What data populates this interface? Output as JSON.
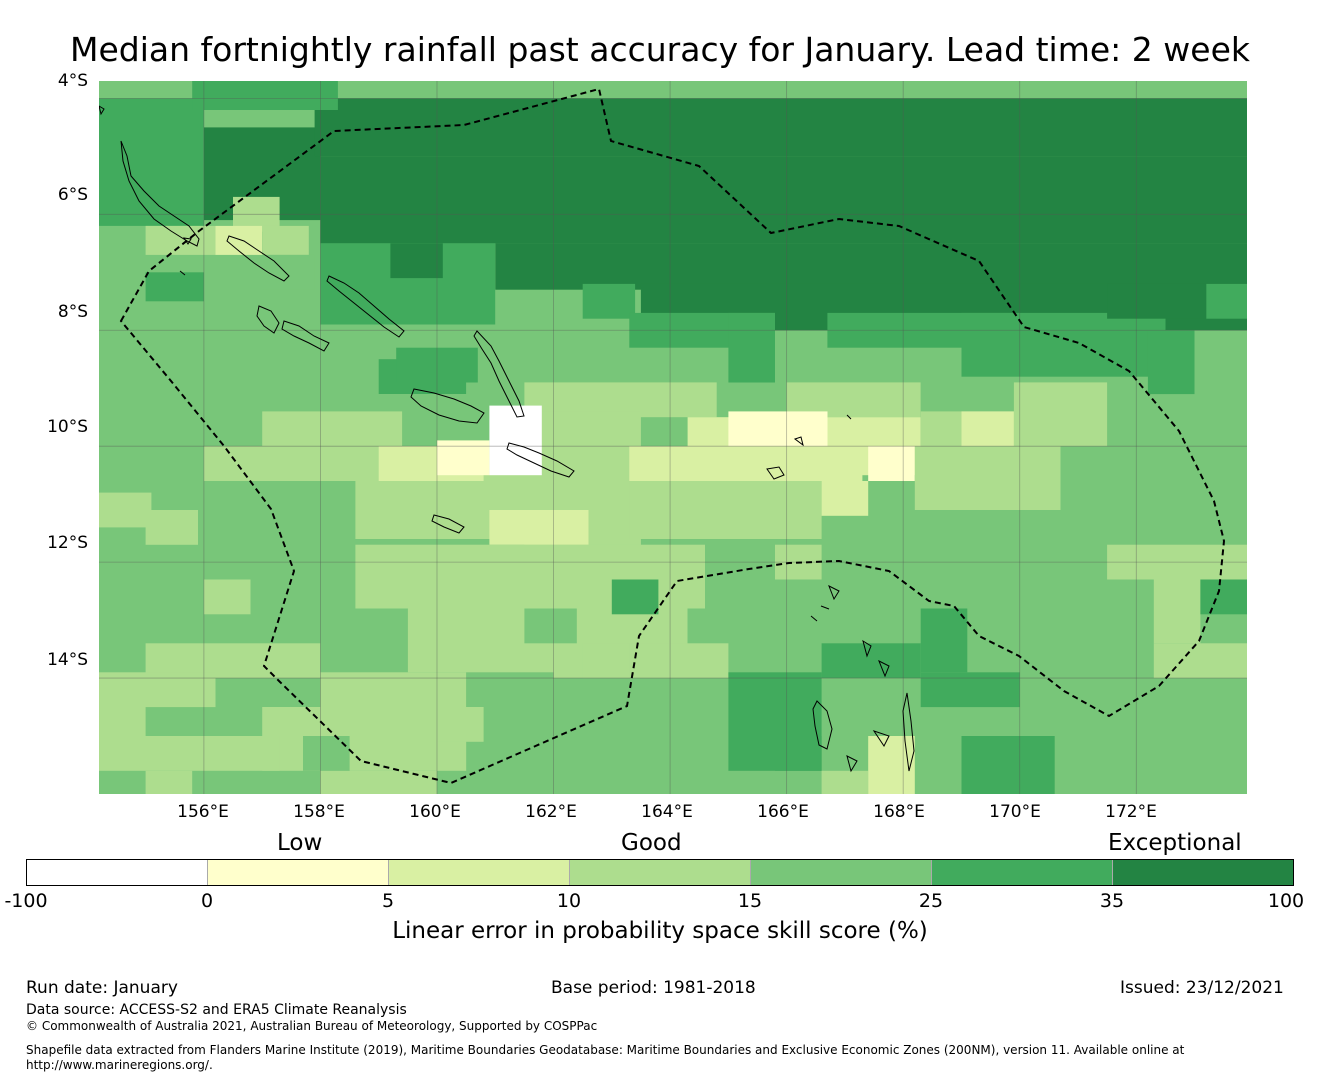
{
  "title": "Median fortnightly rainfall past accuracy for January. Lead time: 2 week",
  "map": {
    "lon_range": [
      154.2,
      173.9
    ],
    "lat_range": [
      -16.0,
      -3.7
    ],
    "y_labels": [
      "4°S",
      "6°S",
      "8°S",
      "10°S",
      "12°S",
      "14°S"
    ],
    "x_labels": [
      "156°E",
      "158°E",
      "160°E",
      "162°E",
      "164°E",
      "166°E",
      "168°E",
      "170°E",
      "172°E"
    ],
    "grid_lons": [
      156,
      158,
      160,
      162,
      164,
      166,
      168,
      170,
      172
    ],
    "grid_lats": [
      -4,
      -6,
      -8,
      -10,
      -12,
      -14
    ],
    "cell_deg": [
      0.833,
      0.555
    ],
    "level_colors": [
      "#ffffff",
      "#ffffcc",
      "#d9f0a3",
      "#addd8e",
      "#78c679",
      "#41ab5d",
      "#238443"
    ],
    "default_level": 4,
    "cells": [
      {
        "lon": 156.0,
        "lat": -4.5,
        "w": 2.0,
        "h": 1.6,
        "level": 6
      },
      {
        "lon": 157.9,
        "lat": -4.0,
        "w": 16.0,
        "h": 1.0,
        "level": 6
      },
      {
        "lon": 158.0,
        "lat": -5.0,
        "w": 16.0,
        "h": 1.5,
        "level": 6
      },
      {
        "lon": 161.0,
        "lat": -6.5,
        "w": 13.0,
        "h": 0.8,
        "level": 6
      },
      {
        "lon": 163.5,
        "lat": -7.2,
        "w": 10.5,
        "h": 0.8,
        "level": 6
      },
      {
        "lon": 154.2,
        "lat": -4.0,
        "w": 1.8,
        "h": 2.2,
        "level": 5
      },
      {
        "lon": 155.8,
        "lat": -3.7,
        "w": 2.5,
        "h": 0.5,
        "level": 5
      },
      {
        "lon": 158.0,
        "lat": -6.5,
        "w": 3.0,
        "h": 1.4,
        "level": 5
      },
      {
        "lon": 159.2,
        "lat": -6.5,
        "w": 0.9,
        "h": 0.6,
        "level": 6
      },
      {
        "lon": 162.5,
        "lat": -7.2,
        "w": 0.9,
        "h": 0.6,
        "level": 5
      },
      {
        "lon": 163.3,
        "lat": -7.7,
        "w": 2.5,
        "h": 0.6,
        "level": 5
      },
      {
        "lon": 165.0,
        "lat": -7.7,
        "w": 0.8,
        "h": 1.2,
        "level": 5
      },
      {
        "lon": 166.7,
        "lat": -7.7,
        "w": 3.3,
        "h": 0.6,
        "level": 5
      },
      {
        "lon": 169.0,
        "lat": -7.7,
        "w": 3.5,
        "h": 1.1,
        "level": 5
      },
      {
        "lon": 172.2,
        "lat": -8.0,
        "w": 0.8,
        "h": 1.1,
        "level": 5
      },
      {
        "lon": 173.2,
        "lat": -7.2,
        "w": 0.7,
        "h": 0.6,
        "level": 5
      },
      {
        "lon": 171.5,
        "lat": -7.2,
        "w": 1.7,
        "h": 0.6,
        "level": 6
      },
      {
        "lon": 155.0,
        "lat": -7.0,
        "w": 1.0,
        "h": 0.5,
        "level": 5
      },
      {
        "lon": 159.0,
        "lat": -8.5,
        "w": 1.5,
        "h": 0.6,
        "level": 5
      },
      {
        "lon": 156.5,
        "lat": -5.7,
        "w": 0.8,
        "h": 0.6,
        "level": 3
      },
      {
        "lon": 156.2,
        "lat": -6.2,
        "w": 0.8,
        "h": 0.5,
        "level": 2
      },
      {
        "lon": 157.0,
        "lat": -6.2,
        "w": 0.8,
        "h": 0.5,
        "level": 3
      },
      {
        "lon": 155.0,
        "lat": -6.2,
        "w": 1.2,
        "h": 0.5,
        "level": 3
      },
      {
        "lon": 161.5,
        "lat": -8.9,
        "w": 3.3,
        "h": 0.6,
        "level": 3
      },
      {
        "lon": 166.0,
        "lat": -8.9,
        "w": 2.3,
        "h": 0.6,
        "level": 3
      },
      {
        "lon": 161.5,
        "lat": -9.4,
        "w": 2.0,
        "h": 2.4,
        "level": 3
      },
      {
        "lon": 157.0,
        "lat": -9.4,
        "w": 2.4,
        "h": 0.6,
        "level": 3
      },
      {
        "lon": 156.0,
        "lat": -10.0,
        "w": 6.0,
        "h": 0.6,
        "level": 3
      },
      {
        "lon": 158.6,
        "lat": -10.6,
        "w": 3.4,
        "h": 1.0,
        "level": 3
      },
      {
        "lon": 164.3,
        "lat": -9.5,
        "w": 4.0,
        "h": 1.0,
        "level": 2
      },
      {
        "lon": 163.3,
        "lat": -10.0,
        "w": 4.0,
        "h": 0.6,
        "level": 2
      },
      {
        "lon": 165.0,
        "lat": -9.4,
        "w": 1.7,
        "h": 0.6,
        "level": 1
      },
      {
        "lon": 168.3,
        "lat": -9.4,
        "w": 1.6,
        "h": 0.6,
        "level": 3
      },
      {
        "lon": 169.0,
        "lat": -9.4,
        "w": 0.9,
        "h": 0.6,
        "level": 2
      },
      {
        "lon": 169.9,
        "lat": -8.9,
        "w": 1.6,
        "h": 1.1,
        "level": 3
      },
      {
        "lon": 163.3,
        "lat": -10.6,
        "w": 3.3,
        "h": 1.0,
        "level": 3
      },
      {
        "lon": 166.6,
        "lat": -10.6,
        "w": 0.8,
        "h": 0.6,
        "level": 2
      },
      {
        "lon": 167.4,
        "lat": -10.0,
        "w": 0.8,
        "h": 0.6,
        "level": 1
      },
      {
        "lon": 168.2,
        "lat": -10.0,
        "w": 2.5,
        "h": 1.1,
        "level": 3
      },
      {
        "lon": 159.0,
        "lat": -10.0,
        "w": 1.8,
        "h": 0.6,
        "level": 2
      },
      {
        "lon": 160.0,
        "lat": -9.9,
        "w": 0.9,
        "h": 0.6,
        "level": 1
      },
      {
        "lon": 160.9,
        "lat": -9.3,
        "w": 0.9,
        "h": 1.2,
        "level": 0
      },
      {
        "lon": 160.9,
        "lat": -11.1,
        "w": 1.7,
        "h": 0.6,
        "level": 2
      },
      {
        "lon": 154.2,
        "lat": -10.8,
        "w": 0.9,
        "h": 0.6,
        "level": 3
      },
      {
        "lon": 155.0,
        "lat": -11.1,
        "w": 0.9,
        "h": 0.6,
        "level": 3
      },
      {
        "lon": 158.6,
        "lat": -11.7,
        "w": 6.0,
        "h": 1.1,
        "level": 3
      },
      {
        "lon": 159.5,
        "lat": -12.8,
        "w": 3.5,
        "h": 1.1,
        "level": 3
      },
      {
        "lon": 162.0,
        "lat": -12.8,
        "w": 2.3,
        "h": 1.2,
        "level": 3
      },
      {
        "lon": 155.0,
        "lat": -13.4,
        "w": 3.0,
        "h": 0.6,
        "level": 3
      },
      {
        "lon": 156.0,
        "lat": -12.3,
        "w": 0.8,
        "h": 0.6,
        "level": 3
      },
      {
        "lon": 158.0,
        "lat": -13.9,
        "w": 2.5,
        "h": 0.6,
        "level": 3
      },
      {
        "lon": 154.2,
        "lat": -13.9,
        "w": 2.0,
        "h": 0.6,
        "level": 3
      },
      {
        "lon": 154.2,
        "lat": -14.5,
        "w": 0.8,
        "h": 0.6,
        "level": 3
      },
      {
        "lon": 157.0,
        "lat": -14.5,
        "w": 3.5,
        "h": 1.1,
        "level": 3
      },
      {
        "lon": 154.2,
        "lat": -15.0,
        "w": 3.1,
        "h": 0.6,
        "level": 3
      },
      {
        "lon": 158.0,
        "lat": -15.6,
        "w": 2.0,
        "h": 0.6,
        "level": 3
      },
      {
        "lon": 157.7,
        "lat": -15.0,
        "w": 0.8,
        "h": 0.6,
        "level": 4
      },
      {
        "lon": 155.0,
        "lat": -15.6,
        "w": 0.8,
        "h": 0.4,
        "level": 3
      },
      {
        "lon": 163.3,
        "lat": -13.4,
        "w": 1.7,
        "h": 0.6,
        "level": 3
      },
      {
        "lon": 162.5,
        "lat": -13.4,
        "w": 0.8,
        "h": 0.6,
        "level": 3
      },
      {
        "lon": 160.0,
        "lat": -14.5,
        "w": 0.8,
        "h": 0.6,
        "level": 3
      },
      {
        "lon": 165.8,
        "lat": -11.7,
        "w": 0.8,
        "h": 0.6,
        "level": 3
      },
      {
        "lon": 171.5,
        "lat": -11.7,
        "w": 2.4,
        "h": 0.6,
        "level": 3
      },
      {
        "lon": 172.3,
        "lat": -12.3,
        "w": 0.8,
        "h": 1.1,
        "level": 3
      },
      {
        "lon": 172.3,
        "lat": -13.4,
        "w": 1.6,
        "h": 0.6,
        "level": 3
      },
      {
        "lon": 173.1,
        "lat": -12.3,
        "w": 0.8,
        "h": 0.6,
        "level": 5
      },
      {
        "lon": 163.0,
        "lat": -12.3,
        "w": 0.8,
        "h": 0.6,
        "level": 5
      },
      {
        "lon": 161.5,
        "lat": -12.8,
        "w": 0.9,
        "h": 0.6,
        "level": 4
      },
      {
        "lon": 168.3,
        "lat": -12.8,
        "w": 0.8,
        "h": 1.1,
        "level": 5
      },
      {
        "lon": 166.6,
        "lat": -13.4,
        "w": 1.7,
        "h": 0.6,
        "level": 5
      },
      {
        "lon": 168.3,
        "lat": -13.9,
        "w": 1.7,
        "h": 0.6,
        "level": 5
      },
      {
        "lon": 165.0,
        "lat": -13.9,
        "w": 1.6,
        "h": 1.7,
        "level": 5
      },
      {
        "lon": 165.8,
        "lat": -15.0,
        "w": 0.8,
        "h": 0.6,
        "level": 5
      },
      {
        "lon": 166.6,
        "lat": -15.6,
        "w": 0.8,
        "h": 0.6,
        "level": 3
      },
      {
        "lon": 167.4,
        "lat": -15.0,
        "w": 0.8,
        "h": 1.1,
        "level": 2
      },
      {
        "lon": 169.0,
        "lat": -15.0,
        "w": 1.6,
        "h": 1.1,
        "level": 5
      },
      {
        "lon": 159.3,
        "lat": -8.3,
        "w": 1.4,
        "h": 0.6,
        "level": 5
      },
      {
        "lon": 157.0,
        "lat": -6.7,
        "w": 0.9,
        "h": 0.6,
        "level": 4
      }
    ],
    "colorbar": {
      "ticks": [
        "-100",
        "0",
        "5",
        "10",
        "15",
        "25",
        "35",
        "100"
      ],
      "colors": [
        "#ffffff",
        "#ffffcc",
        "#d9f0a3",
        "#addd8e",
        "#78c679",
        "#41ab5d",
        "#238443"
      ],
      "category_low": "Low",
      "category_good": "Good",
      "category_exceptional": "Exceptional",
      "title": "Linear error in probability space skill score (%)"
    }
  },
  "footer": {
    "run_date": "Run date: January",
    "base_period": "Base period: 1981-2018",
    "issued": "Issued: 23/12/2021",
    "data_source": "Data source: ACCESS-S2 and ERA5 Climate Reanalysis",
    "copyright": "© Commonwealth of Australia 2021, Australian Bureau of Meteorology, Supported by COSPPac",
    "shapefile": "Shapefile data extracted from Flanders Marine Institute (2019), Maritime Boundaries Geodatabase: Maritime Boundaries and Exclusive Economic Zones (200NM), version 11. Available online at",
    "url": "http://www.marineregions.org/."
  }
}
